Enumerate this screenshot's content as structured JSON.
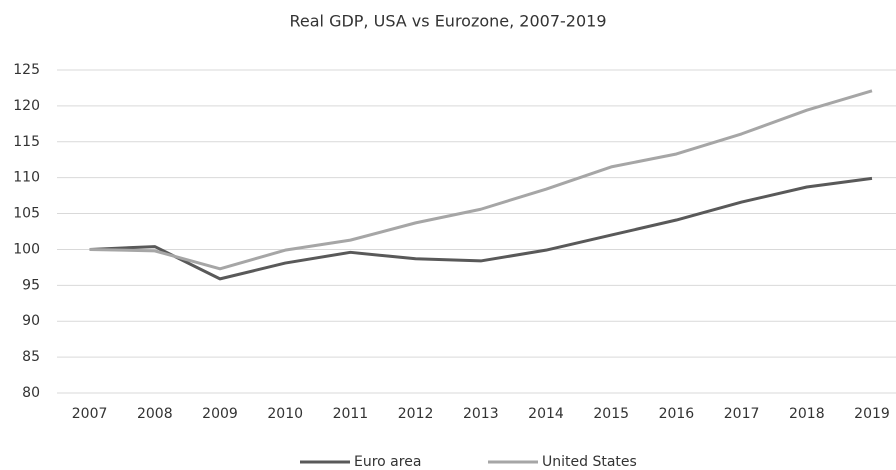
{
  "chart_data": {
    "type": "line",
    "title": "Real GDP, USA vs Eurozone, 2007-2019",
    "categories": [
      "2007",
      "2008",
      "2009",
      "2010",
      "2011",
      "2012",
      "2013",
      "2014",
      "2015",
      "2016",
      "2017",
      "2018",
      "2019"
    ],
    "series": [
      {
        "name": "Euro area",
        "color": "#595959",
        "values": [
          100,
          100.4,
          95.9,
          98.1,
          99.6,
          98.7,
          98.4,
          99.9,
          102,
          104.1,
          106.6,
          108.7,
          109.9
        ]
      },
      {
        "name": "United States",
        "color": "#a6a6a6",
        "values": [
          100,
          99.8,
          97.3,
          99.9,
          101.3,
          103.7,
          105.6,
          108.4,
          111.5,
          113.3,
          116.1,
          119.4,
          122.1
        ]
      }
    ],
    "ylim": [
      80,
      125
    ],
    "yticks": [
      80,
      85,
      90,
      95,
      100,
      105,
      110,
      115,
      120,
      125
    ],
    "grid": true,
    "legend": "bottom"
  }
}
